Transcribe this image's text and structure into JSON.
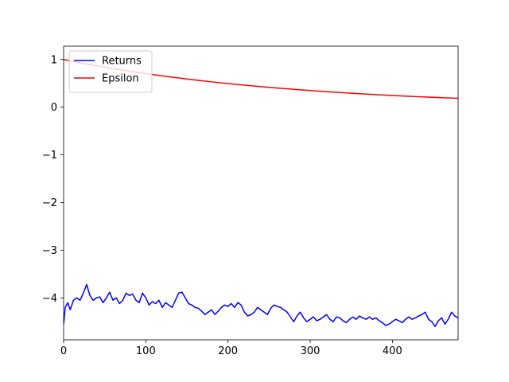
{
  "chart_data": {
    "type": "line",
    "title": "",
    "xlabel": "",
    "ylabel": "",
    "xlim": [
      0,
      480
    ],
    "ylim": [
      -4.88,
      1.28
    ],
    "x_ticks": [
      0,
      100,
      200,
      300,
      400
    ],
    "x_tick_labels": [
      "0",
      "100",
      "200",
      "300",
      "400"
    ],
    "y_ticks": [
      1,
      0,
      -1,
      -2,
      -3,
      -4
    ],
    "y_tick_labels": [
      "1",
      "0",
      "−1",
      "−2",
      "−3",
      "−4"
    ],
    "grid": false,
    "legend_position": "top-left",
    "series": [
      {
        "name": "Returns",
        "color": "#0000ff",
        "x": [
          0,
          2,
          5,
          8,
          12,
          16,
          20,
          24,
          28,
          32,
          36,
          40,
          44,
          48,
          52,
          56,
          60,
          64,
          68,
          72,
          76,
          80,
          84,
          88,
          92,
          96,
          100,
          104,
          108,
          112,
          116,
          120,
          124,
          128,
          132,
          136,
          140,
          144,
          148,
          152,
          156,
          160,
          164,
          168,
          172,
          176,
          180,
          184,
          188,
          192,
          196,
          200,
          204,
          208,
          212,
          216,
          220,
          224,
          228,
          232,
          236,
          240,
          244,
          248,
          252,
          256,
          260,
          264,
          268,
          272,
          276,
          280,
          284,
          288,
          292,
          296,
          300,
          304,
          308,
          312,
          316,
          320,
          324,
          328,
          332,
          336,
          340,
          344,
          348,
          352,
          356,
          360,
          364,
          368,
          372,
          376,
          380,
          384,
          388,
          392,
          396,
          400,
          404,
          408,
          412,
          416,
          420,
          424,
          428,
          432,
          436,
          440,
          444,
          448,
          452,
          456,
          460,
          464,
          468,
          472,
          476,
          480
        ],
        "values": [
          -4.55,
          -4.2,
          -4.1,
          -4.25,
          -4.05,
          -4.0,
          -4.05,
          -3.9,
          -3.72,
          -3.95,
          -4.05,
          -4.0,
          -3.98,
          -4.1,
          -4.0,
          -3.88,
          -4.05,
          -4.0,
          -4.12,
          -4.05,
          -3.9,
          -3.95,
          -3.92,
          -4.05,
          -4.1,
          -3.9,
          -4.0,
          -4.15,
          -4.08,
          -4.12,
          -4.05,
          -4.2,
          -4.1,
          -4.15,
          -4.2,
          -4.05,
          -3.9,
          -3.88,
          -4.0,
          -4.12,
          -4.15,
          -4.2,
          -4.22,
          -4.28,
          -4.35,
          -4.3,
          -4.25,
          -4.35,
          -4.28,
          -4.2,
          -4.15,
          -4.18,
          -4.12,
          -4.2,
          -4.1,
          -4.15,
          -4.3,
          -4.38,
          -4.35,
          -4.3,
          -4.2,
          -4.25,
          -4.3,
          -4.35,
          -4.22,
          -4.15,
          -4.18,
          -4.2,
          -4.25,
          -4.3,
          -4.4,
          -4.5,
          -4.38,
          -4.3,
          -4.42,
          -4.5,
          -4.45,
          -4.4,
          -4.48,
          -4.45,
          -4.4,
          -4.35,
          -4.45,
          -4.5,
          -4.4,
          -4.42,
          -4.48,
          -4.52,
          -4.45,
          -4.4,
          -4.45,
          -4.38,
          -4.42,
          -4.45,
          -4.4,
          -4.45,
          -4.42,
          -4.48,
          -4.52,
          -4.58,
          -4.55,
          -4.5,
          -4.45,
          -4.48,
          -4.52,
          -4.45,
          -4.4,
          -4.45,
          -4.42,
          -4.38,
          -4.35,
          -4.3,
          -4.45,
          -4.5,
          -4.6,
          -4.48,
          -4.42,
          -4.55,
          -4.45,
          -4.3,
          -4.38,
          -4.42
        ]
      },
      {
        "name": "Epsilon",
        "color": "#ff0000",
        "x": [
          0,
          20,
          40,
          60,
          80,
          100,
          120,
          140,
          160,
          180,
          200,
          220,
          240,
          260,
          280,
          300,
          320,
          340,
          360,
          380,
          400,
          420,
          440,
          460,
          480
        ],
        "values": [
          1.0,
          0.932,
          0.869,
          0.81,
          0.755,
          0.704,
          0.657,
          0.612,
          0.571,
          0.532,
          0.496,
          0.462,
          0.431,
          0.402,
          0.374,
          0.349,
          0.325,
          0.303,
          0.283,
          0.264,
          0.246,
          0.229,
          0.214,
          0.199,
          0.186
        ]
      }
    ]
  }
}
